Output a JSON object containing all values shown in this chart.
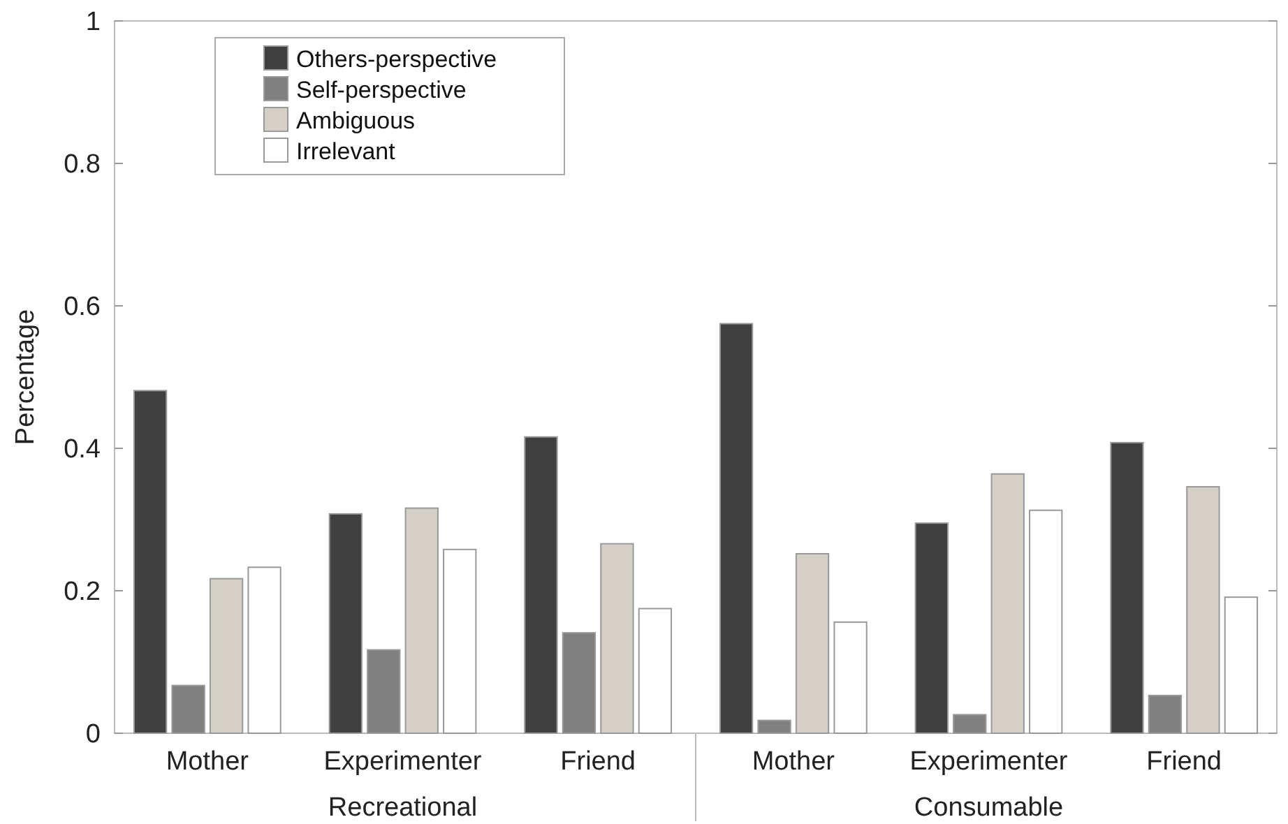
{
  "chart_data": {
    "type": "bar",
    "ylabel": "Percentage",
    "categories": [
      "Mother",
      "Experimenter",
      "Friend",
      "Mother",
      "Experimenter",
      "Friend"
    ],
    "series": [
      {
        "name": "Others-perspective",
        "color": "#404040",
        "values": [
          0.481,
          0.308,
          0.416,
          0.575,
          0.295,
          0.408
        ]
      },
      {
        "name": "Self-perspective",
        "color": "#808080",
        "values": [
          0.067,
          0.117,
          0.141,
          0.018,
          0.026,
          0.053
        ]
      },
      {
        "name": "Ambiguous",
        "color": "#d4d0c8",
        "values": [
          0.217,
          0.316,
          0.266,
          0.252,
          0.364,
          0.346
        ]
      },
      {
        "name": "Irrelevant",
        "color": "#ffffff",
        "values": [
          0.233,
          0.258,
          0.175,
          0.156,
          0.313,
          0.191
        ]
      }
    ],
    "ylim": [
      0,
      1
    ],
    "yticks": [
      0,
      0.2,
      0.4,
      0.6,
      0.8,
      1
    ],
    "grid": false,
    "legend": "top left",
    "annotations": [
      "Recreational",
      "Consumable"
    ]
  }
}
